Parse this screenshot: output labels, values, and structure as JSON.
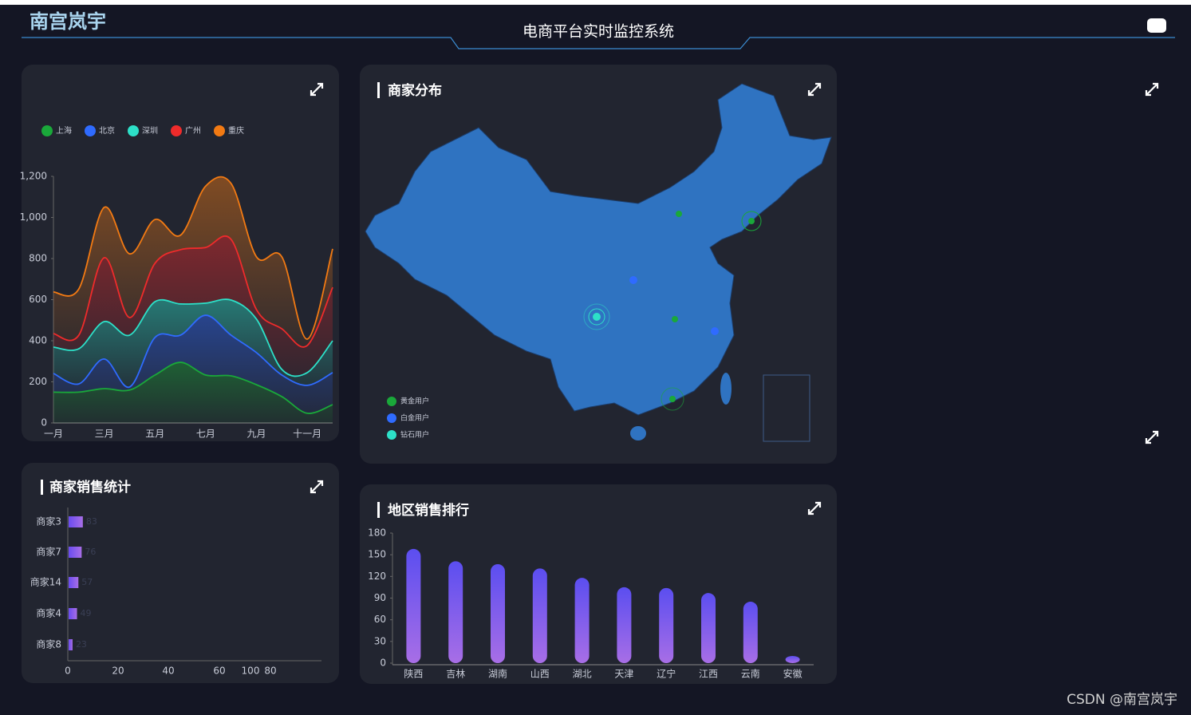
{
  "header": {
    "logo": "南宫岚宇",
    "title": "电商平台实时监控系统"
  },
  "sales_trend": {
    "type": "line",
    "stacked": true,
    "area": true,
    "categories": [
      "一月",
      null,
      "三月",
      null,
      "五月",
      null,
      "七月",
      null,
      "九月",
      null,
      "十一月",
      null
    ],
    "series": [
      {
        "name": "上海",
        "color": "#1aa83a",
        "values": [
          150,
          150,
          167,
          160,
          233,
          295,
          233,
          229,
          186,
          128,
          47,
          89
        ]
      },
      {
        "name": "北京",
        "color": "#2f6bff",
        "values": [
          91,
          40,
          144,
          15,
          183,
          132,
          291,
          198,
          156,
          105,
          136,
          156
        ]
      },
      {
        "name": "深圳",
        "color": "#2de0c8",
        "values": [
          128,
          171,
          182,
          252,
          174,
          152,
          59,
          171,
          163,
          27,
          62,
          155
        ]
      },
      {
        "name": "广州",
        "color": "#ef2b2b",
        "values": [
          66,
          66,
          311,
          86,
          187,
          264,
          271,
          295,
          46,
          198,
          132,
          260
        ]
      },
      {
        "name": "重庆",
        "color": "#f27a13",
        "values": [
          202,
          225,
          245,
          310,
          213,
          70,
          299,
          272,
          257,
          350,
          31,
          187
        ]
      }
    ],
    "ylim": [
      0,
      1200
    ],
    "yticks": [
      0,
      200,
      400,
      600,
      800,
      {
        "value": 1000,
        "label": "1,000"
      },
      {
        "value": 1200,
        "label": "1,200"
      }
    ]
  },
  "merchant_map": {
    "title": "商家分布",
    "legend": [
      {
        "name": "黄金用户",
        "color": "#1aa83a"
      },
      {
        "name": "白金用户",
        "color": "#2f6bff"
      },
      {
        "name": "钻石用户",
        "color": "#2de0c8"
      }
    ]
  },
  "merchant_sales": {
    "type": "bar",
    "orientation": "horizontal",
    "title": "商家销售统计",
    "categories": [
      "商家3",
      "商家7",
      "商家14",
      "商家4",
      "商家8"
    ],
    "values": [
      83,
      76,
      57,
      49,
      23
    ],
    "x_axis_labels": [
      "0",
      "20",
      "40",
      "60",
      "100",
      "80"
    ],
    "color": "#7b5cf0"
  },
  "region_sales": {
    "type": "bar",
    "title": "地区销售排行",
    "categories": [
      "陕西",
      "吉林",
      "湖南",
      "山西",
      "湖北",
      "天津",
      "辽宁",
      "江西",
      "云南",
      "安徽"
    ],
    "values": [
      158,
      141,
      137,
      131,
      118,
      105,
      104,
      97,
      85,
      10
    ],
    "ylim": [
      0,
      180
    ],
    "yticks": [
      0,
      30,
      60,
      90,
      120,
      150,
      180
    ]
  },
  "watermark": "CSDN @南宫岚宇"
}
